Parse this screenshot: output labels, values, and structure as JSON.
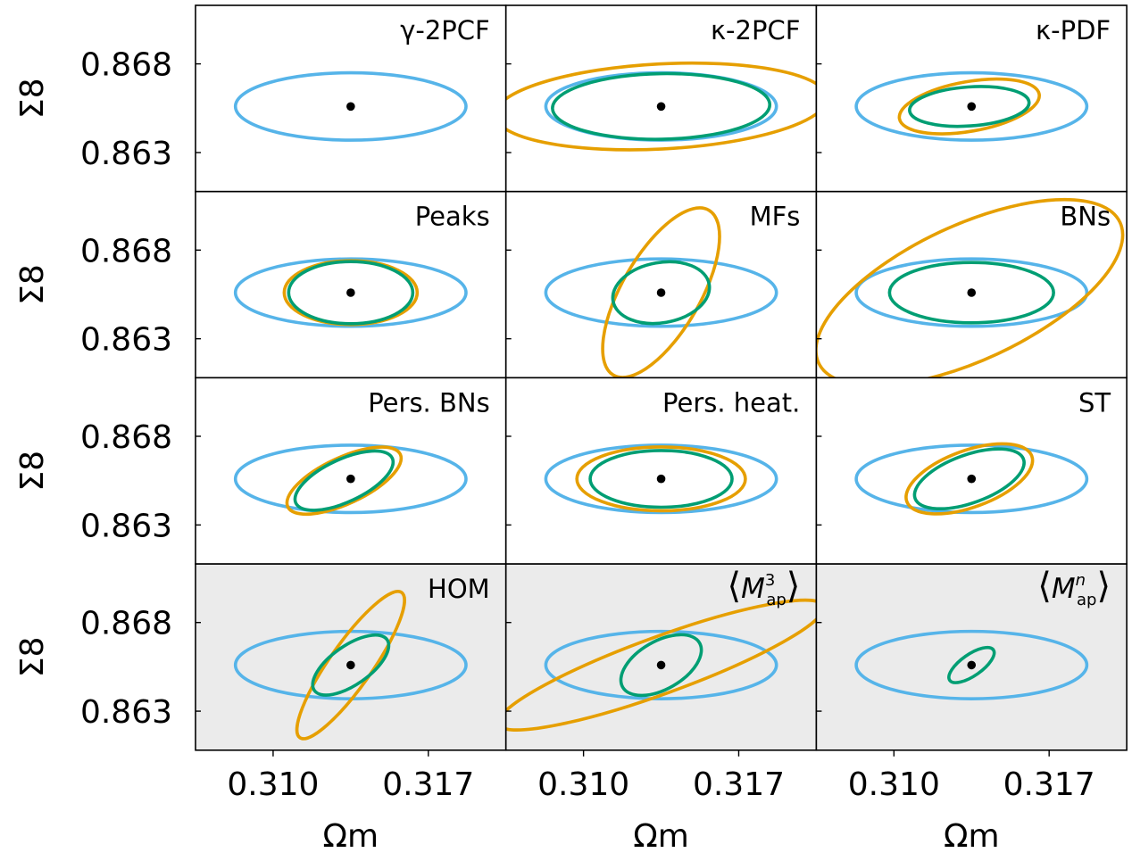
{
  "colors": {
    "background": "#ffffff",
    "highlight_background": "#ebebeb",
    "blue": "#56b4e9",
    "orange": "#e69f00",
    "green": "#009e73",
    "fiducial": "#000000",
    "frame": "#000000"
  },
  "chart_data": {
    "type": "contour-grid",
    "layout": {
      "rows": 4,
      "cols": 3
    },
    "xlabel": "Ωm",
    "ylabel": "Σ8",
    "x_ticks": [
      "0.310",
      "0.317"
    ],
    "x_tick_values": [
      0.31,
      0.317
    ],
    "y_ticks": [
      "0.868",
      "0.863"
    ],
    "y_tick_values": [
      0.868,
      0.863
    ],
    "xlim": [
      0.3065,
      0.3205
    ],
    "ylim": [
      0.8608,
      0.8713
    ],
    "fiducial": {
      "omega_m": 0.3135,
      "sigma_8": 0.8656
    },
    "series_colors": {
      "reference": "#56b4e9",
      "single": "#e69f00",
      "combined": "#009e73"
    },
    "panels": [
      {
        "label": "γ-2PCF",
        "highlighted": false,
        "ellipses": [
          {
            "series": "reference",
            "cx": 0.3135,
            "cy": 0.8656,
            "a": 0.0052,
            "b": 0.0019,
            "angle_deg": 0
          }
        ]
      },
      {
        "label": "κ-2PCF",
        "highlighted": false,
        "ellipses": [
          {
            "series": "reference",
            "cx": 0.3135,
            "cy": 0.8656,
            "a": 0.0052,
            "b": 0.0019,
            "angle_deg": 0
          },
          {
            "series": "single",
            "cx": 0.3135,
            "cy": 0.8656,
            "a": 0.0075,
            "b": 0.0024,
            "angle_deg": 3
          },
          {
            "series": "combined",
            "cx": 0.3135,
            "cy": 0.8656,
            "a": 0.0049,
            "b": 0.00185,
            "angle_deg": 1
          }
        ]
      },
      {
        "label": "κ-PDF",
        "highlighted": false,
        "ellipses": [
          {
            "series": "reference",
            "cx": 0.3135,
            "cy": 0.8656,
            "a": 0.0052,
            "b": 0.0019,
            "angle_deg": 0
          },
          {
            "series": "single",
            "cx": 0.3134,
            "cy": 0.8656,
            "a": 0.0032,
            "b": 0.0014,
            "angle_deg": 10
          },
          {
            "series": "combined",
            "cx": 0.3134,
            "cy": 0.8656,
            "a": 0.0027,
            "b": 0.0011,
            "angle_deg": 4
          }
        ]
      },
      {
        "label": "Peaks",
        "highlighted": false,
        "ellipses": [
          {
            "series": "reference",
            "cx": 0.3135,
            "cy": 0.8656,
            "a": 0.0052,
            "b": 0.0019,
            "angle_deg": 0
          },
          {
            "series": "single",
            "cx": 0.3135,
            "cy": 0.8656,
            "a": 0.003,
            "b": 0.0018,
            "angle_deg": 0
          },
          {
            "series": "combined",
            "cx": 0.3135,
            "cy": 0.8656,
            "a": 0.0028,
            "b": 0.00175,
            "angle_deg": 0
          }
        ]
      },
      {
        "label": "MFs",
        "highlighted": false,
        "ellipses": [
          {
            "series": "reference",
            "cx": 0.3135,
            "cy": 0.8656,
            "a": 0.0052,
            "b": 0.0019,
            "angle_deg": 0
          },
          {
            "series": "single",
            "cx": 0.3135,
            "cy": 0.8656,
            "a": 0.0043,
            "b": 0.0022,
            "angle_deg": 60
          },
          {
            "series": "combined",
            "cx": 0.3135,
            "cy": 0.8656,
            "a": 0.0022,
            "b": 0.0017,
            "angle_deg": 10
          }
        ]
      },
      {
        "label": "BNs",
        "highlighted": false,
        "ellipses": [
          {
            "series": "reference",
            "cx": 0.3135,
            "cy": 0.8656,
            "a": 0.0052,
            "b": 0.0019,
            "angle_deg": 0
          },
          {
            "series": "single",
            "cx": 0.3134,
            "cy": 0.8656,
            "a": 0.0075,
            "b": 0.0038,
            "angle_deg": 25
          },
          {
            "series": "combined",
            "cx": 0.3135,
            "cy": 0.8656,
            "a": 0.0037,
            "b": 0.0017,
            "angle_deg": 0
          }
        ]
      },
      {
        "label": "Pers. BNs",
        "highlighted": false,
        "ellipses": [
          {
            "series": "reference",
            "cx": 0.3135,
            "cy": 0.8656,
            "a": 0.0052,
            "b": 0.0019,
            "angle_deg": 0
          },
          {
            "series": "single",
            "cx": 0.3132,
            "cy": 0.8655,
            "a": 0.0028,
            "b": 0.0013,
            "angle_deg": 25
          },
          {
            "series": "combined",
            "cx": 0.3132,
            "cy": 0.8655,
            "a": 0.0024,
            "b": 0.0012,
            "angle_deg": 25
          }
        ]
      },
      {
        "label": "Pers. heat.",
        "highlighted": false,
        "ellipses": [
          {
            "series": "reference",
            "cx": 0.3135,
            "cy": 0.8656,
            "a": 0.0052,
            "b": 0.0019,
            "angle_deg": 0
          },
          {
            "series": "single",
            "cx": 0.3135,
            "cy": 0.8656,
            "a": 0.0038,
            "b": 0.0018,
            "angle_deg": 0
          },
          {
            "series": "combined",
            "cx": 0.3135,
            "cy": 0.8656,
            "a": 0.0032,
            "b": 0.0016,
            "angle_deg": 0
          }
        ]
      },
      {
        "label": "ST",
        "highlighted": false,
        "ellipses": [
          {
            "series": "reference",
            "cx": 0.3135,
            "cy": 0.8656,
            "a": 0.0052,
            "b": 0.0019,
            "angle_deg": 0
          },
          {
            "series": "single",
            "cx": 0.3134,
            "cy": 0.8656,
            "a": 0.003,
            "b": 0.0016,
            "angle_deg": 20
          },
          {
            "series": "combined",
            "cx": 0.3134,
            "cy": 0.8656,
            "a": 0.0026,
            "b": 0.00135,
            "angle_deg": 20
          }
        ]
      },
      {
        "label": "HOM",
        "highlighted": true,
        "ellipses": [
          {
            "series": "reference",
            "cx": 0.3135,
            "cy": 0.8656,
            "a": 0.0052,
            "b": 0.0019,
            "angle_deg": 0
          },
          {
            "series": "single",
            "cx": 0.3135,
            "cy": 0.8656,
            "a": 0.004,
            "b": 0.0012,
            "angle_deg": 55
          },
          {
            "series": "combined",
            "cx": 0.3135,
            "cy": 0.8656,
            "a": 0.002,
            "b": 0.0011,
            "angle_deg": 35
          }
        ]
      },
      {
        "label": "⟨M³ap⟩",
        "label_base": "M",
        "label_sup": "3",
        "label_sub": "ap",
        "highlighted": true,
        "ellipses": [
          {
            "series": "reference",
            "cx": 0.3135,
            "cy": 0.8656,
            "a": 0.0052,
            "b": 0.0019,
            "angle_deg": 0
          },
          {
            "series": "single",
            "cx": 0.3135,
            "cy": 0.8656,
            "a": 0.0078,
            "b": 0.0016,
            "angle_deg": 20
          },
          {
            "series": "combined",
            "cx": 0.3135,
            "cy": 0.8656,
            "a": 0.002,
            "b": 0.00135,
            "angle_deg": 30
          }
        ]
      },
      {
        "label": "⟨Mⁿap⟩",
        "label_base": "M",
        "label_sup": "n",
        "label_sub": "ap",
        "highlighted": true,
        "ellipses": [
          {
            "series": "reference",
            "cx": 0.3135,
            "cy": 0.8656,
            "a": 0.0052,
            "b": 0.0019,
            "angle_deg": 0
          },
          {
            "series": "combined",
            "cx": 0.3135,
            "cy": 0.8656,
            "a": 0.0012,
            "b": 0.0006,
            "angle_deg": 35
          }
        ]
      }
    ]
  }
}
